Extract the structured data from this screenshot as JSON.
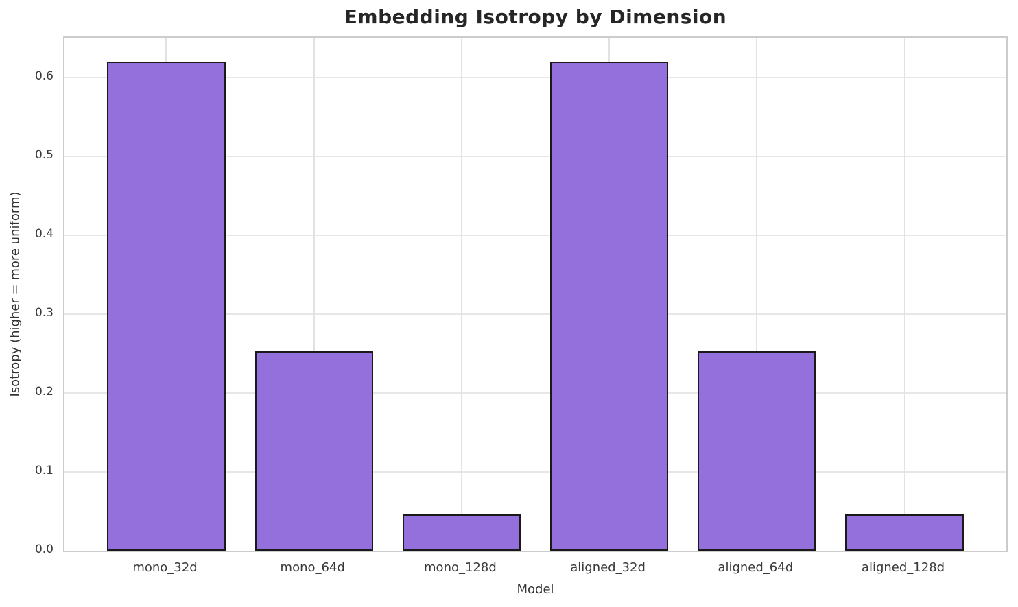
{
  "chart_data": {
    "type": "bar",
    "title": "Embedding Isotropy by Dimension",
    "xlabel": "Model",
    "ylabel": "Isotropy (higher = more uniform)",
    "categories": [
      "mono_32d",
      "mono_64d",
      "mono_128d",
      "aligned_32d",
      "aligned_64d",
      "aligned_128d"
    ],
    "values": [
      0.62,
      0.253,
      0.046,
      0.62,
      0.253,
      0.046
    ],
    "ylim": [
      0,
      0.65
    ],
    "yticks": [
      0.0,
      0.1,
      0.2,
      0.3,
      0.4,
      0.5,
      0.6
    ],
    "xlim": [
      -0.69,
      5.69
    ],
    "bar_width_units": 0.8,
    "grid": true,
    "legend": null,
    "bar_color": "#9370DB",
    "bar_edge_color": "#1a1a1a",
    "background_color": "#ffffff"
  }
}
